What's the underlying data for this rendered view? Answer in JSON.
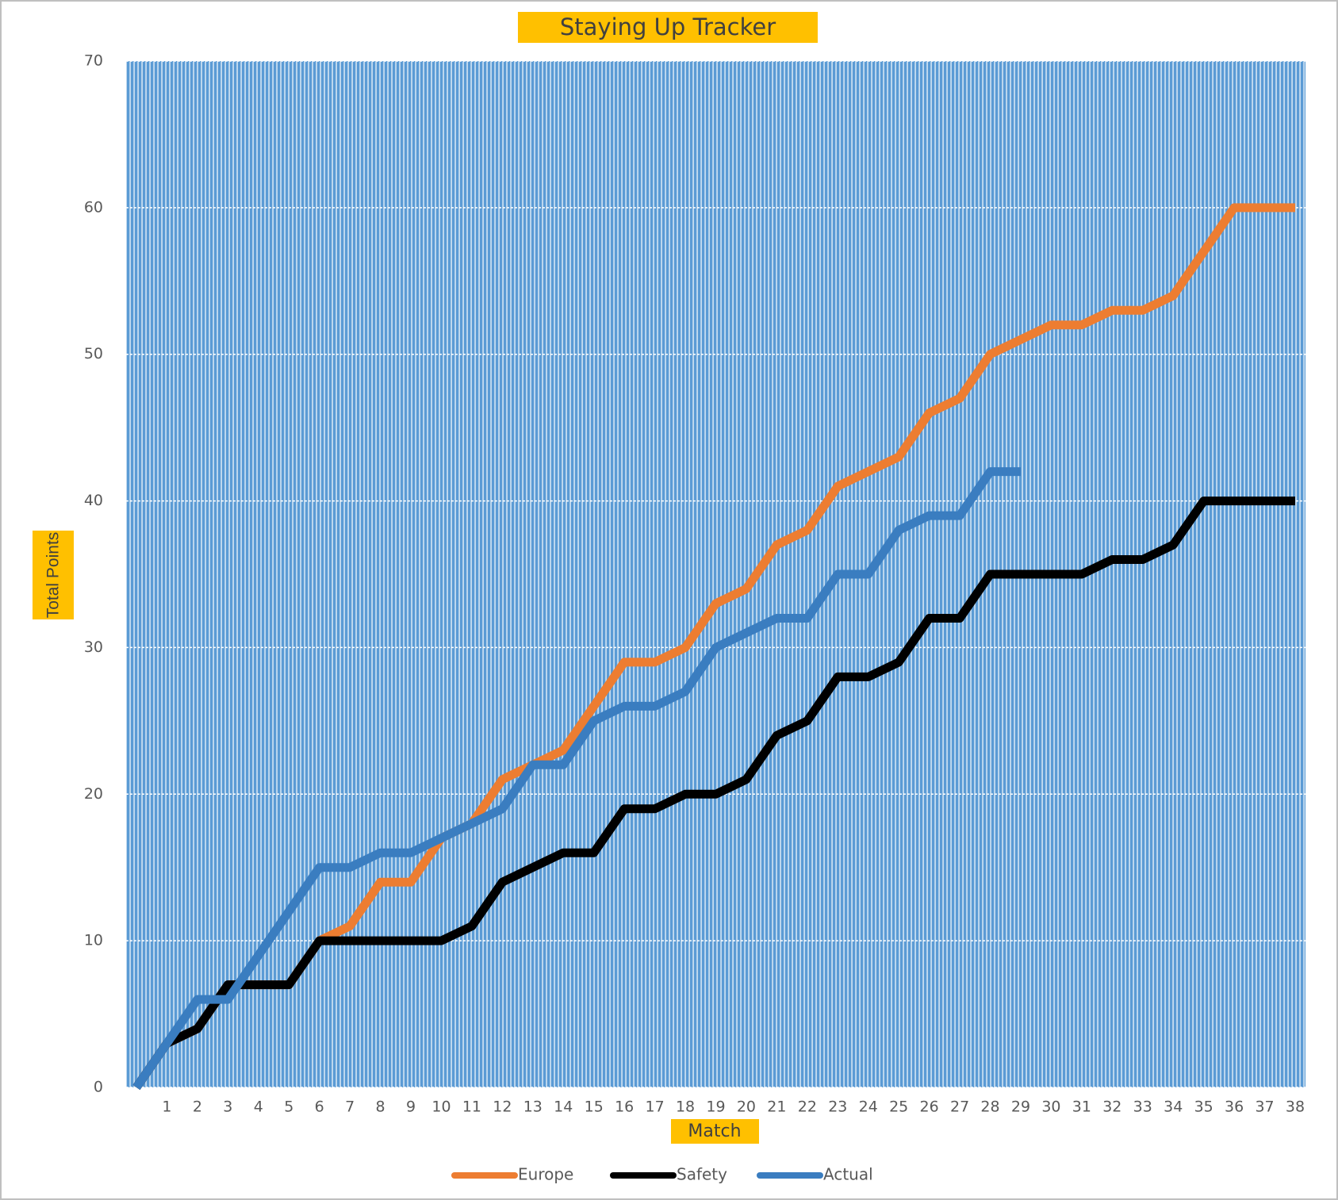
{
  "chart_data": {
    "type": "line",
    "title": "Staying Up Tracker",
    "x_label": "Match",
    "y_label": "Total Points",
    "categories": [
      null,
      "1",
      "2",
      "3",
      "4",
      "5",
      "6",
      "7",
      "8",
      "9",
      "10",
      "11",
      "12",
      "13",
      "14",
      "15",
      "16",
      "17",
      "18",
      "19",
      "20",
      "21",
      "22",
      "23",
      "24",
      "25",
      "26",
      "27",
      "28",
      "29",
      "30",
      "31",
      "32",
      "33",
      "34",
      "35",
      "36",
      "37",
      "38"
    ],
    "series": [
      {
        "name": "Europe",
        "color": "#ed7d31",
        "values": [
          0,
          3,
          4,
          7,
          7,
          7,
          10,
          11,
          14,
          14,
          17,
          18,
          21,
          22,
          23,
          26,
          29,
          29,
          30,
          33,
          34,
          37,
          38,
          41,
          42,
          43,
          46,
          47,
          50,
          51,
          52,
          52,
          53,
          53,
          54,
          57,
          60,
          60,
          60
        ]
      },
      {
        "name": "Safety",
        "color": "#000000",
        "values": [
          0,
          3,
          4,
          7,
          7,
          7,
          10,
          10,
          10,
          10,
          10,
          11,
          14,
          15,
          16,
          16,
          19,
          19,
          20,
          20,
          21,
          24,
          25,
          28,
          28,
          29,
          32,
          32,
          35,
          35,
          35,
          35,
          36,
          36,
          37,
          40,
          40,
          40,
          40
        ]
      },
      {
        "name": "Actual",
        "color": "#3a7dc0",
        "values": [
          0,
          3,
          6,
          6,
          9,
          12,
          15,
          15,
          16,
          16,
          17,
          18,
          19,
          22,
          22,
          25,
          26,
          26,
          27,
          30,
          31,
          32,
          32,
          35,
          35,
          38,
          39,
          39,
          42,
          42,
          null,
          null,
          null,
          null,
          null,
          null,
          null,
          null,
          null
        ]
      }
    ],
    "ylim": [
      0,
      70
    ],
    "yticks": [
      0,
      10,
      20,
      30,
      40,
      50,
      60,
      70
    ],
    "grid": true,
    "legend": "bottom"
  }
}
